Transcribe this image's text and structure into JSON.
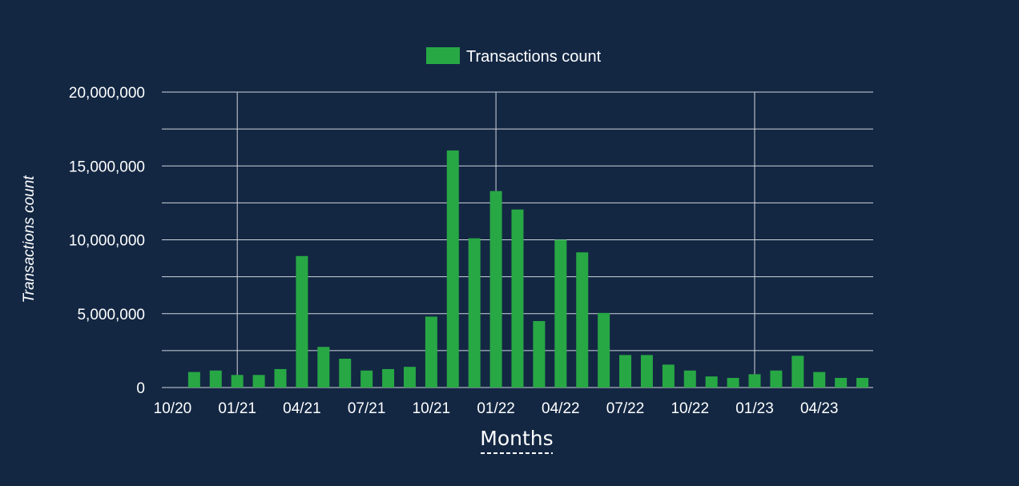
{
  "chart_data": {
    "type": "bar",
    "legend": {
      "label": "Transactions count",
      "position": "top-center"
    },
    "xlabel": "Months",
    "ylabel": "Transactions count",
    "ylim": [
      0,
      20000000
    ],
    "y_ticks": [
      {
        "value": 0,
        "label": "0"
      },
      {
        "value": 5000000,
        "label": "5,000,000"
      },
      {
        "value": 10000000,
        "label": "10,000,000"
      },
      {
        "value": 15000000,
        "label": "15,000,000"
      },
      {
        "value": 20000000,
        "label": "20,000,000"
      }
    ],
    "x_tick_labels": [
      "10/20",
      "01/21",
      "04/21",
      "07/21",
      "10/21",
      "01/22",
      "04/22",
      "07/22",
      "10/22",
      "01/23",
      "04/23"
    ],
    "x_tick_category_index": [
      0,
      3,
      6,
      9,
      12,
      15,
      18,
      21,
      24,
      27,
      30
    ],
    "vertical_grid_category_index": [
      3,
      15,
      27
    ],
    "grid": true,
    "colors": {
      "bar": "#28a745",
      "background": "#132743",
      "grid": "#d0d4da",
      "text": "#ffffff",
      "xlabel_underline": "#ffffff"
    },
    "categories": [
      "10/20",
      "11/20",
      "12/20",
      "01/21",
      "02/21",
      "03/21",
      "04/21",
      "05/21",
      "06/21",
      "07/21",
      "08/21",
      "09/21",
      "10/21",
      "11/21",
      "12/21",
      "01/22",
      "02/22",
      "03/22",
      "04/22",
      "05/22",
      "06/22",
      "07/22",
      "08/22",
      "09/22",
      "10/22",
      "11/22",
      "12/22",
      "01/23",
      "02/23",
      "03/23",
      "04/23",
      "05/23",
      "06/23"
    ],
    "values": [
      0,
      1050000,
      1150000,
      850000,
      850000,
      1250000,
      8900000,
      2750000,
      1950000,
      1150000,
      1250000,
      1400000,
      4800000,
      16050000,
      10100000,
      13300000,
      12050000,
      4500000,
      10000000,
      9150000,
      5050000,
      2200000,
      2200000,
      1550000,
      1150000,
      750000,
      650000,
      900000,
      1150000,
      2150000,
      1050000,
      650000,
      650000
    ]
  }
}
